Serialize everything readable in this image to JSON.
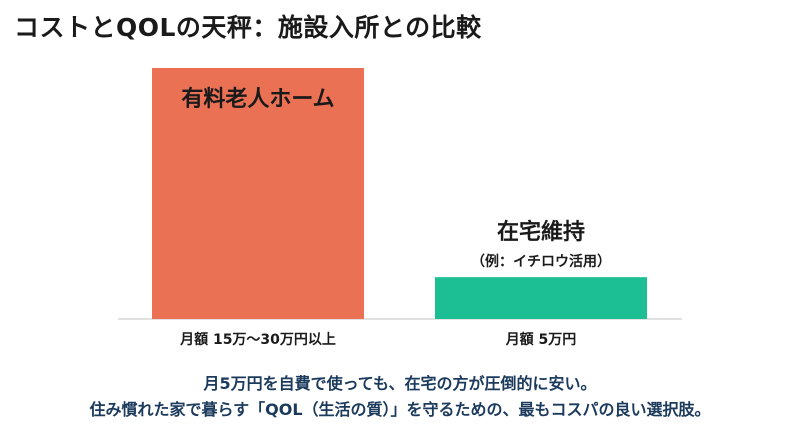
{
  "title": "コストとQOLの天秤：施設入所との比較",
  "chart_data": {
    "type": "bar",
    "categories": [
      "有料老人ホーム",
      "在宅維持"
    ],
    "bar_labels": [
      "有料老人ホーム",
      "在宅維持"
    ],
    "bar_sublabels": [
      "",
      "（例：イチロウ活用）"
    ],
    "tick_labels": [
      "月額 15万〜30万円以上",
      "月額 5万円"
    ],
    "values": [
      30,
      5
    ],
    "units": "万円/月",
    "ylim": [
      0,
      30
    ],
    "grid": false,
    "colors": [
      "#EB7155",
      "#1CBF94"
    ]
  },
  "caption": {
    "line1": "月5万円を自費で使っても、在宅の方が圧倒的に安い。",
    "line2": "住み慣れた家で暮らす「QOL（生活の質）」を守るための、最もコスパの良い選択肢。"
  }
}
